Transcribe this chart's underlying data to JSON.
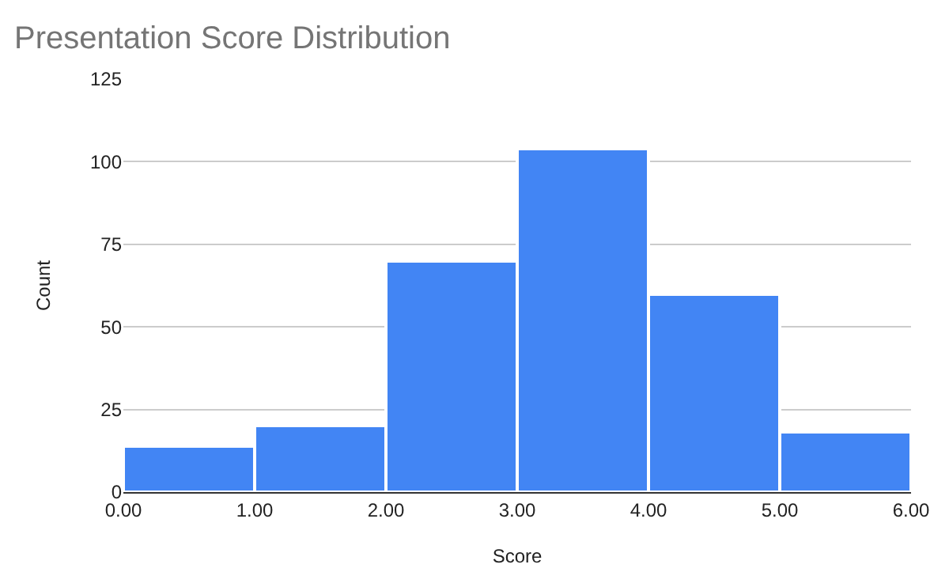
{
  "chart_data": {
    "type": "histogram",
    "title": "Presentation Score Distribution",
    "xlabel": "Score",
    "ylabel": "Count",
    "bins": [
      0,
      1,
      2,
      3,
      4,
      5,
      6
    ],
    "values": [
      14,
      20,
      70,
      104,
      60,
      18
    ],
    "color": "#4285f4",
    "xlim": [
      0,
      6
    ],
    "xticks": [
      {
        "value": 0,
        "label": "0.00"
      },
      {
        "value": 1,
        "label": "1.00"
      },
      {
        "value": 2,
        "label": "2.00"
      },
      {
        "value": 3,
        "label": "3.00"
      },
      {
        "value": 4,
        "label": "4.00"
      },
      {
        "value": 5,
        "label": "5.00"
      },
      {
        "value": 6,
        "label": "6.00"
      }
    ],
    "ylim": [
      0,
      125
    ],
    "yticks": [
      0,
      25,
      50,
      75,
      100,
      125
    ],
    "grid": "y"
  }
}
